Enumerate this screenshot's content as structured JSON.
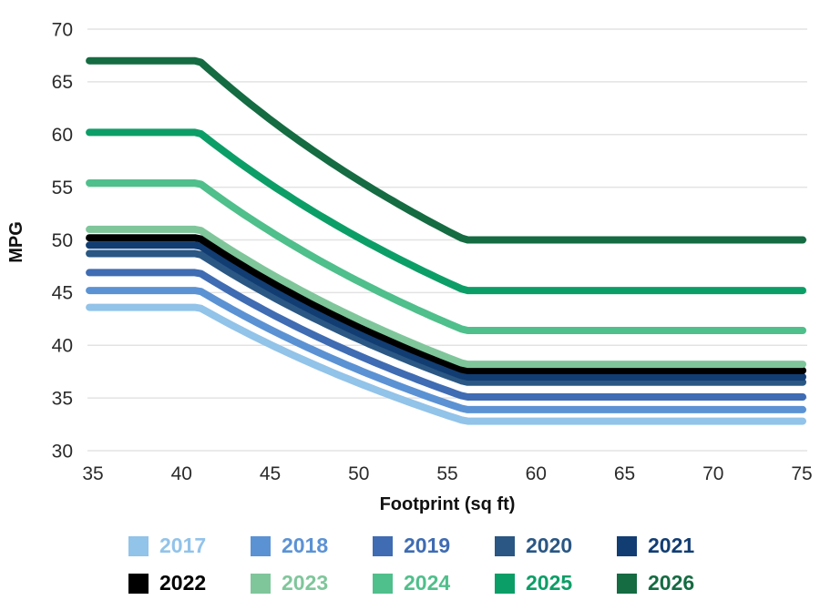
{
  "chart_data": {
    "type": "line",
    "title": "",
    "xlabel": "Footprint (sq ft)",
    "ylabel": "MPG",
    "xlim": [
      35,
      75.5
    ],
    "ylim": [
      30,
      70
    ],
    "x_ticks": [
      35,
      40,
      45,
      50,
      55,
      60,
      65,
      70,
      75
    ],
    "y_ticks": [
      30,
      35,
      40,
      45,
      50,
      55,
      60,
      65,
      70
    ],
    "grid": "horizontal",
    "gridline_color": "#e3e3e3",
    "legend_position": "bottom",
    "curve_shape": "flat plateau below kink1, reciprocal (linear in gallons-per-mile) decline between kinks, flat plateau above kink2",
    "kink_footprints": [
      41,
      56
    ],
    "line_width": 8,
    "series": [
      {
        "name": "2017",
        "color": "#92C3E9",
        "mpg_at_small_footprint": 43.6,
        "mpg_at_large_footprint": 32.8
      },
      {
        "name": "2018",
        "color": "#5B92D4",
        "mpg_at_small_footprint": 45.2,
        "mpg_at_large_footprint": 33.9
      },
      {
        "name": "2019",
        "color": "#3F6CB3",
        "mpg_at_small_footprint": 46.9,
        "mpg_at_large_footprint": 35.1
      },
      {
        "name": "2020",
        "color": "#2A5784",
        "mpg_at_small_footprint": 48.7,
        "mpg_at_large_footprint": 36.5
      },
      {
        "name": "2021",
        "color": "#123D73",
        "mpg_at_small_footprint": 49.5,
        "mpg_at_large_footprint": 37.0
      },
      {
        "name": "2022",
        "color": "#000000",
        "mpg_at_small_footprint": 50.2,
        "mpg_at_large_footprint": 37.6
      },
      {
        "name": "2023",
        "color": "#7FC69B",
        "mpg_at_small_footprint": 51.0,
        "mpg_at_large_footprint": 38.2
      },
      {
        "name": "2024",
        "color": "#4FBF8B",
        "mpg_at_small_footprint": 55.4,
        "mpg_at_large_footprint": 41.4
      },
      {
        "name": "2025",
        "color": "#0C9E67",
        "mpg_at_small_footprint": 60.2,
        "mpg_at_large_footprint": 45.2
      },
      {
        "name": "2026",
        "color": "#156B42",
        "mpg_at_small_footprint": 67.0,
        "mpg_at_large_footprint": 50.0
      }
    ],
    "legend_rows": [
      [
        "2017",
        "2018",
        "2019",
        "2020",
        "2021"
      ],
      [
        "2022",
        "2023",
        "2024",
        "2025",
        "2026"
      ]
    ]
  }
}
